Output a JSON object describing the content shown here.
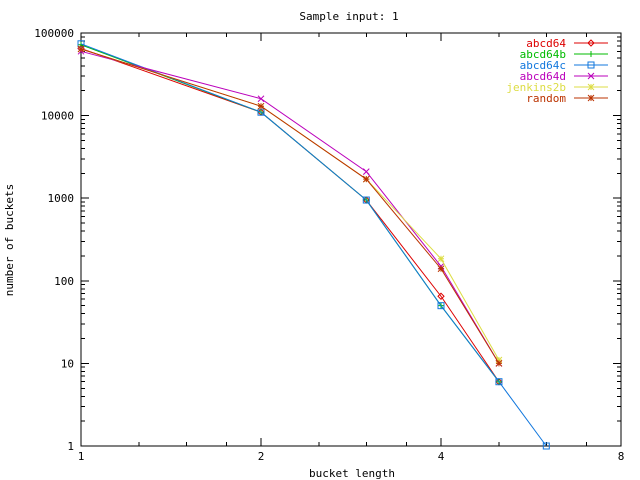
{
  "chart_data": {
    "type": "line",
    "title": "Sample input: 1",
    "xlabel": "bucket length",
    "ylabel": "number of buckets",
    "xscale": "log2",
    "yscale": "log10",
    "xlim": [
      1,
      8
    ],
    "ylim": [
      1,
      100000
    ],
    "xticks": [
      {
        "value": 1,
        "label": "1"
      },
      {
        "value": 2,
        "label": "2"
      },
      {
        "value": 4,
        "label": "4"
      },
      {
        "value": 8,
        "label": "8"
      }
    ],
    "yticks": [
      {
        "value": 1,
        "label": "1"
      },
      {
        "value": 10,
        "label": "10"
      },
      {
        "value": 100,
        "label": "100"
      },
      {
        "value": 1000,
        "label": "1000"
      },
      {
        "value": 10000,
        "label": "10000"
      },
      {
        "value": 100000,
        "label": "100000"
      }
    ],
    "grid": false,
    "legend_position": "top-right",
    "series": [
      {
        "name": "abcd64",
        "color": "#dd0000",
        "marker": "diamond",
        "points": [
          [
            1,
            65000
          ],
          [
            2,
            11000
          ],
          [
            3,
            950
          ],
          [
            4,
            65
          ],
          [
            5,
            6
          ]
        ]
      },
      {
        "name": "abcd64b",
        "color": "#00bb00",
        "marker": "plus",
        "points": [
          [
            1,
            72000
          ],
          [
            2,
            11000
          ],
          [
            3,
            950
          ],
          [
            4,
            50
          ],
          [
            5,
            6
          ]
        ]
      },
      {
        "name": "abcd64c",
        "color": "#1177dd",
        "marker": "square",
        "points": [
          [
            1,
            74000
          ],
          [
            2,
            11000
          ],
          [
            3,
            950
          ],
          [
            4,
            50
          ],
          [
            5,
            6
          ],
          [
            6,
            1
          ]
        ]
      },
      {
        "name": "abcd64d",
        "color": "#bb00bb",
        "marker": "cross",
        "points": [
          [
            1,
            60000
          ],
          [
            2,
            16000
          ],
          [
            3,
            2100
          ],
          [
            4,
            150
          ],
          [
            5,
            10
          ]
        ]
      },
      {
        "name": "jenkins2b",
        "color": "#dddd44",
        "marker": "asterisk",
        "points": [
          [
            1,
            64000
          ],
          [
            2,
            13000
          ],
          [
            3,
            1700
          ],
          [
            4,
            185
          ],
          [
            5,
            11
          ]
        ]
      },
      {
        "name": "random",
        "color": "#bb3300",
        "marker": "asterisk",
        "points": [
          [
            1,
            64000
          ],
          [
            2,
            13000
          ],
          [
            3,
            1700
          ],
          [
            4,
            140
          ],
          [
            5,
            10
          ]
        ]
      }
    ]
  }
}
